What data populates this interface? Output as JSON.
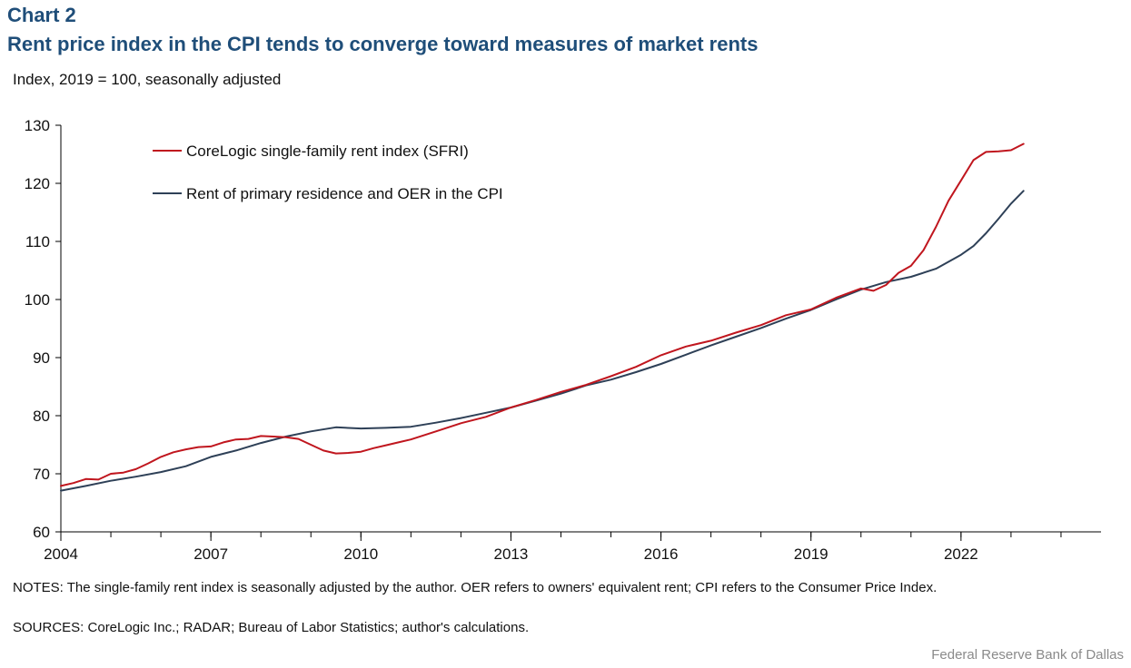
{
  "header": {
    "chart_label": "Chart 2",
    "title": "Rent price index in the CPI tends to converge toward measures of market rents",
    "unit_label": "Index, 2019 = 100, seasonally adjusted"
  },
  "footer": {
    "notes": "NOTES: The single-family rent index is seasonally adjusted by the author. OER refers to owners' equivalent rent; CPI refers to the Consumer Price Index.",
    "sources": "SOURCES: CoreLogic Inc.; RADAR; Bureau of Labor Statistics; author's calculations.",
    "credit": "Federal Reserve Bank of Dallas"
  },
  "colors": {
    "sfri": "#c0161e",
    "cpi": "#2e4057",
    "axis": "#000000"
  },
  "chart_data": {
    "type": "line",
    "title": "Rent price index in the CPI tends to converge toward measures of market rents",
    "xlabel": "",
    "ylabel": "Index, 2019 = 100, seasonally adjusted",
    "xlim": [
      2004,
      2024.8
    ],
    "ylim": [
      60,
      130
    ],
    "x_ticks": [
      "2004",
      "2007",
      "2010",
      "2013",
      "2016",
      "2019",
      "2022"
    ],
    "y_ticks": [
      "60",
      "70",
      "80",
      "90",
      "100",
      "110",
      "120",
      "130"
    ],
    "grid": false,
    "legend_position": "top-left",
    "series": [
      {
        "name": "CoreLogic single-family rent index (SFRI)",
        "color": "#c0161e",
        "x": [
          2004.0,
          2004.25,
          2004.5,
          2004.75,
          2005.0,
          2005.25,
          2005.5,
          2005.75,
          2006.0,
          2006.25,
          2006.5,
          2006.75,
          2007.0,
          2007.25,
          2007.5,
          2007.75,
          2008.0,
          2008.25,
          2008.5,
          2008.75,
          2009.0,
          2009.25,
          2009.5,
          2009.75,
          2010.0,
          2010.25,
          2010.5,
          2010.75,
          2011.0,
          2011.5,
          2012.0,
          2012.5,
          2013.0,
          2013.5,
          2014.0,
          2014.5,
          2015.0,
          2015.5,
          2016.0,
          2016.5,
          2017.0,
          2017.5,
          2018.0,
          2018.5,
          2019.0,
          2019.5,
          2020.0,
          2020.25,
          2020.5,
          2020.75,
          2021.0,
          2021.25,
          2021.5,
          2021.75,
          2022.0,
          2022.25,
          2022.5,
          2022.75,
          2023.0,
          2023.25
        ],
        "y": [
          67.9,
          68.4,
          69.1,
          69.0,
          70.0,
          70.2,
          70.8,
          71.8,
          72.9,
          73.7,
          74.2,
          74.6,
          74.7,
          75.4,
          75.9,
          76.0,
          76.5,
          76.4,
          76.3,
          76.0,
          75.0,
          74.0,
          73.5,
          73.6,
          73.8,
          74.4,
          74.9,
          75.4,
          75.9,
          77.3,
          78.7,
          79.8,
          81.4,
          82.7,
          84.1,
          85.3,
          86.8,
          88.4,
          90.4,
          91.9,
          92.9,
          94.3,
          95.6,
          97.3,
          98.3,
          100.3,
          101.9,
          101.5,
          102.5,
          104.6,
          105.8,
          108.5,
          112.5,
          117.0,
          120.5,
          124.0,
          125.4,
          125.5,
          125.7,
          126.8
        ]
      },
      {
        "name": "Rent of primary residence and OER in the CPI",
        "color": "#2e4057",
        "x": [
          2004.0,
          2004.5,
          2005.0,
          2005.5,
          2006.0,
          2006.5,
          2007.0,
          2007.5,
          2008.0,
          2008.5,
          2009.0,
          2009.5,
          2010.0,
          2010.5,
          2011.0,
          2011.5,
          2012.0,
          2012.5,
          2013.0,
          2013.5,
          2014.0,
          2014.5,
          2015.0,
          2015.5,
          2016.0,
          2016.5,
          2017.0,
          2017.5,
          2018.0,
          2018.5,
          2019.0,
          2019.5,
          2020.0,
          2020.5,
          2021.0,
          2021.5,
          2022.0,
          2022.25,
          2022.5,
          2022.75,
          2023.0,
          2023.25
        ],
        "y": [
          67.1,
          67.9,
          68.8,
          69.5,
          70.3,
          71.3,
          72.9,
          74.0,
          75.3,
          76.4,
          77.3,
          78.0,
          77.8,
          77.9,
          78.1,
          78.8,
          79.6,
          80.5,
          81.4,
          82.6,
          83.8,
          85.2,
          86.2,
          87.5,
          88.9,
          90.5,
          92.1,
          93.6,
          95.1,
          96.7,
          98.2,
          100.0,
          101.7,
          103.0,
          103.9,
          105.3,
          107.7,
          109.2,
          111.4,
          113.9,
          116.5,
          118.7
        ]
      }
    ]
  }
}
